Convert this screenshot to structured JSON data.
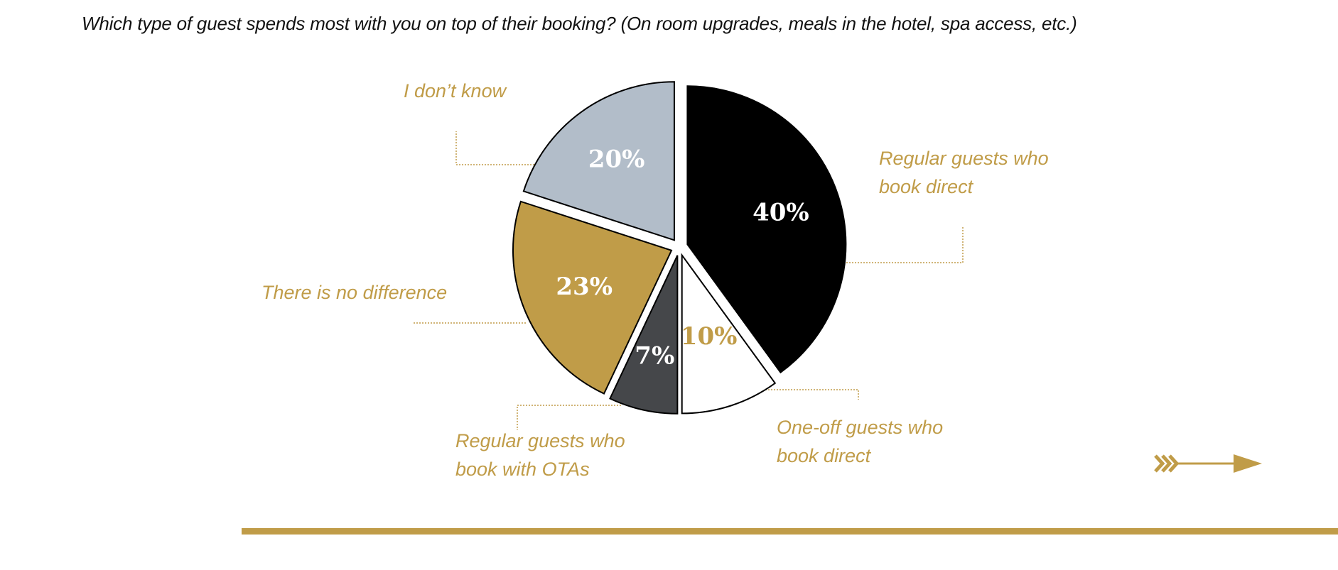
{
  "question": "Which type of guest spends most with you on top of their booking? (On room upgrades, meals in the hotel, spa access, etc.)",
  "colors": {
    "gold": "#c09c48",
    "black": "#000000",
    "white": "#ffffff",
    "dark_gray": "#45474a",
    "light_blue_gray": "#b2bdc9"
  },
  "icons": {
    "next": "triple-chevron-arrow-right-icon"
  },
  "chart_data": {
    "type": "pie",
    "start_angle_deg": 0,
    "direction": "clockwise",
    "exploded": true,
    "slices": [
      {
        "label_lines": [
          "Regular guests who",
          "book direct"
        ],
        "value": 40,
        "display": "40%",
        "color": "#000000",
        "text_color": "#ffffff"
      },
      {
        "label_lines": [
          "One-off guests who",
          "book direct"
        ],
        "value": 10,
        "display": "10%",
        "color": "#ffffff",
        "text_color": "#c09c48"
      },
      {
        "label_lines": [
          "Regular guests who",
          "book with OTAs"
        ],
        "value": 7,
        "display": "7%",
        "color": "#45474a",
        "text_color": "#ffffff"
      },
      {
        "label_lines": [
          "There is no difference"
        ],
        "value": 23,
        "display": "23%",
        "color": "#c09c48",
        "text_color": "#ffffff"
      },
      {
        "label_lines": [
          "I don’t know"
        ],
        "value": 20,
        "display": "20%",
        "color": "#b2bdc9",
        "text_color": "#ffffff"
      }
    ]
  }
}
